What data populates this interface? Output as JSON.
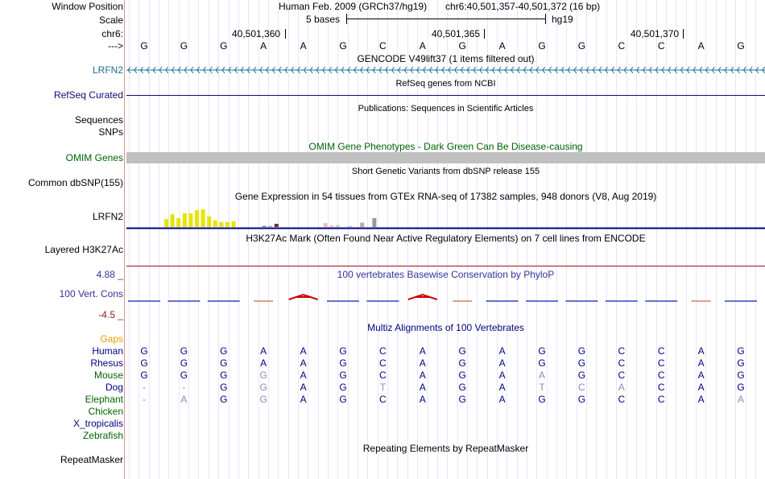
{
  "header": {
    "window_position_label": "Window Position",
    "scale_label": "Scale",
    "chrom_label": "chr6:",
    "arrow_label": "--->",
    "assembly_text": "Human Feb. 2009 (GRCh37/hg19)",
    "position_text": "chr6:40,501,357-40,501,372 (16 bp)",
    "scale_text": "5 bases",
    "db_text": "hg19",
    "ruler_ticks": [
      "40,501,360",
      "40,501,365",
      "40,501,370"
    ]
  },
  "sequence": [
    "G",
    "G",
    "G",
    "A",
    "A",
    "G",
    "C",
    "A",
    "G",
    "A",
    "G",
    "G",
    "C",
    "C",
    "A",
    "G"
  ],
  "tracks": {
    "gencode": {
      "title": "GENCODE V49lift37 (1 items filtered out)",
      "label": "LRFN2"
    },
    "refseq": {
      "title": "RefSeq genes from NCBI",
      "label": "RefSeq Curated"
    },
    "publications": {
      "title": "Publications: Sequences in Scientific Articles",
      "label1": "Sequences",
      "label2": "SNPs"
    },
    "omim": {
      "title": "OMIM Gene Phenotypes - Dark Green Can Be Disease-causing",
      "label": "OMIM Genes"
    },
    "dbsnp": {
      "title": "Short Genetic Variants from dbSNP release 155",
      "label": "Common dbSNP(155)"
    },
    "gtex": {
      "title": "Gene Expression in 54 tissues from GTEx RNA-seq of 17382 samples, 948 donors (V8, Aug 2019)",
      "label": "LRFN2"
    },
    "h3k27ac": {
      "title": "H3K27Ac Mark (Often Found Near Active Regulatory Elements) on 7 cell lines from ENCODE",
      "label": "Layered H3K27Ac"
    },
    "phylop": {
      "title": "100 vertebrates Basewise Conservation by PhyloP",
      "label": "100 Vert. Cons",
      "max_label": "4.88 _",
      "min_label": "-4.5 _"
    },
    "multiz": {
      "title": "Multiz Alignments of 100 Vertebrates",
      "gaps_label": "Gaps"
    },
    "repeatmasker": {
      "title": "Repeating Elements by RepeatMasker",
      "label": "RepeatMasker"
    }
  },
  "gtex_bars": [
    {
      "v": 0.45,
      "c": "#e5e500"
    },
    {
      "v": 0.72,
      "c": "#e5e500"
    },
    {
      "v": 0.5,
      "c": "#e5e500"
    },
    {
      "v": 0.78,
      "c": "#e5e500"
    },
    {
      "v": 0.78,
      "c": "#e5e500"
    },
    {
      "v": 0.95,
      "c": "#e5e500"
    },
    {
      "v": 1.0,
      "c": "#e5e500"
    },
    {
      "v": 0.6,
      "c": "#e5e500"
    },
    {
      "v": 0.38,
      "c": "#e5e500"
    },
    {
      "v": 0.28,
      "c": "#e5e500"
    },
    {
      "v": 0.28,
      "c": "#e5e500"
    },
    {
      "v": 0.33,
      "c": "#e5e500"
    },
    {
      "v": 0.0,
      "c": "#ffffff"
    },
    {
      "v": 0.0,
      "c": "#ffffff"
    },
    {
      "v": 0.0,
      "c": "#ffffff"
    },
    {
      "v": 0.0,
      "c": "#ffffff"
    },
    {
      "v": 0.06,
      "c": "#777777"
    },
    {
      "v": 0.06,
      "c": "#aaaaaa"
    },
    {
      "v": 0.18,
      "c": "#663333"
    },
    {
      "v": 0.0,
      "c": "#ffffff"
    },
    {
      "v": 0.0,
      "c": "#ffffff"
    },
    {
      "v": 0.0,
      "c": "#ffffff"
    },
    {
      "v": 0.0,
      "c": "#ffffff"
    },
    {
      "v": 0.0,
      "c": "#ffffff"
    },
    {
      "v": 0.0,
      "c": "#ffffff"
    },
    {
      "v": 0.0,
      "c": "#ffffff"
    },
    {
      "v": 0.22,
      "c": "#f4b8c0"
    },
    {
      "v": 0.08,
      "c": "#f4b8c0"
    },
    {
      "v": 0.12,
      "c": "#b0e0b0"
    },
    {
      "v": 0.0,
      "c": "#ffffff"
    },
    {
      "v": 0.06,
      "c": "#b0c4de"
    },
    {
      "v": 0.0,
      "c": "#ffffff"
    },
    {
      "v": 0.25,
      "c": "#c7a89c"
    },
    {
      "v": 0.0,
      "c": "#ffffff"
    },
    {
      "v": 0.5,
      "c": "#999999"
    },
    {
      "v": 0.0,
      "c": "#ffffff"
    }
  ],
  "phylop_scores": [
    -0.3,
    -0.3,
    -0.2,
    0,
    0.9,
    -0.2,
    -0.3,
    0.9,
    0,
    -0.2,
    -0.2,
    -0.1,
    -0.3,
    -0.2,
    0,
    -0.4
  ],
  "species": [
    {
      "name": "Human",
      "color": "#000080",
      "bases": [
        "G",
        "G",
        "G",
        "A",
        "A",
        "G",
        "C",
        "A",
        "G",
        "A",
        "G",
        "G",
        "C",
        "C",
        "A",
        "G"
      ]
    },
    {
      "name": "Rhesus",
      "color": "#000080",
      "bases": [
        "G",
        "G",
        "G",
        "A",
        "A",
        "G",
        "C",
        "A",
        "G",
        "A",
        "G",
        "G",
        "C",
        "C",
        "A",
        "G"
      ]
    },
    {
      "name": "Mouse",
      "color": "#006400",
      "bases": [
        "G",
        "G",
        "G",
        "G",
        "A",
        "G",
        "C",
        "A",
        "G",
        "A",
        "A",
        "G",
        "C",
        "C",
        "A",
        "G"
      ]
    },
    {
      "name": "Dog",
      "color": "#000080",
      "bases": [
        "-",
        "-",
        "G",
        "G",
        "A",
        "G",
        "T",
        "A",
        "G",
        "A",
        "T",
        "C",
        "A",
        "C",
        "A",
        "G"
      ]
    },
    {
      "name": "Elephant",
      "color": "#006400",
      "bases": [
        "-",
        "A",
        "G",
        "G",
        "A",
        "G",
        "C",
        "A",
        "G",
        "A",
        "G",
        "G",
        "C",
        "C",
        "A",
        "A"
      ]
    },
    {
      "name": "Chicken",
      "color": "#006400",
      "bases": []
    },
    {
      "name": "X_tropicalis",
      "color": "#000080",
      "bases": []
    },
    {
      "name": "Zebrafish",
      "color": "#006400",
      "bases": []
    }
  ]
}
